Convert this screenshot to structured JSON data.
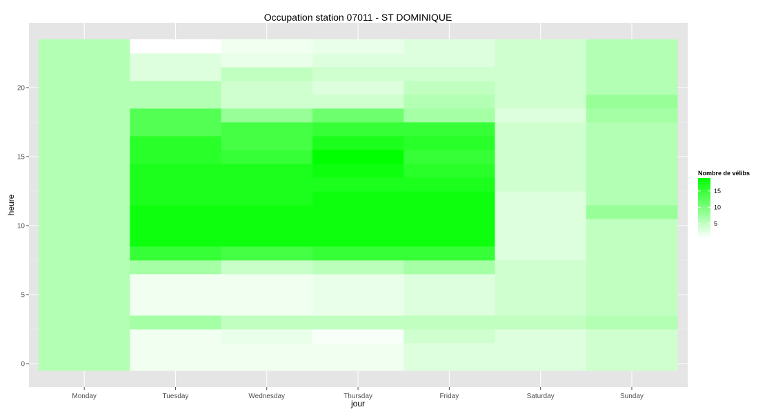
{
  "chart_data": {
    "type": "heatmap",
    "title": "Occupation station 07011 - ST DOMINIQUE",
    "xlabel": "jour",
    "ylabel": "heure",
    "x_categories": [
      "Monday",
      "Tuesday",
      "Wednesday",
      "Thursday",
      "Friday",
      "Saturday",
      "Sunday"
    ],
    "y_ticks": [
      0,
      5,
      10,
      15,
      20
    ],
    "y_range": [
      -0.5,
      23.5
    ],
    "hours": [
      0,
      1,
      2,
      3,
      4,
      5,
      6,
      7,
      8,
      9,
      10,
      11,
      12,
      13,
      14,
      15,
      16,
      17,
      18,
      19,
      20,
      21,
      22,
      23
    ],
    "legend": {
      "title": "Nombre de vélibs",
      "ticks": [
        5,
        10,
        15
      ],
      "min": 0.5,
      "max": 19,
      "low_color": "#ffffff",
      "high_color": "#00ff00"
    },
    "grid": true,
    "legend_position": "right",
    "values": [
      [
        6,
        6,
        6,
        6,
        6,
        6,
        6,
        6,
        6,
        6,
        6,
        6,
        6,
        6,
        6,
        6,
        6,
        6,
        6,
        6,
        6,
        6,
        6,
        6
      ],
      [
        1.5,
        1.5,
        1.5,
        7,
        1.5,
        1.5,
        1.5,
        7,
        15,
        18,
        18,
        18,
        17,
        17,
        17,
        16,
        16,
        13,
        13,
        6,
        6,
        3,
        3,
        0.5
      ],
      [
        1.5,
        1.5,
        2,
        5,
        1.5,
        1.5,
        1.5,
        4.5,
        14,
        18,
        18,
        18,
        17,
        17,
        17,
        15,
        14,
        14,
        8,
        4,
        4,
        5,
        2,
        1.5
      ],
      [
        1.5,
        1.5,
        1,
        5,
        2,
        2,
        2,
        5.5,
        15,
        18,
        18,
        18,
        18,
        17,
        18,
        19,
        17,
        15,
        11,
        4,
        3,
        4,
        3,
        2
      ],
      [
        3,
        3,
        4,
        5,
        3,
        3,
        3,
        7,
        15,
        18,
        18,
        18,
        18,
        17,
        16,
        15,
        16,
        15,
        7,
        6,
        5,
        4,
        3,
        3
      ],
      [
        3,
        3,
        3,
        5,
        4,
        4,
        4,
        4,
        3,
        3,
        3,
        3,
        3,
        4,
        4,
        4,
        4,
        4,
        3,
        4,
        4,
        4,
        4,
        4
      ],
      [
        4,
        4,
        4,
        6,
        5,
        5,
        5,
        5,
        5,
        5,
        5,
        8,
        6,
        6,
        6,
        6,
        6,
        6,
        7,
        8,
        6,
        6,
        6,
        6
      ]
    ]
  }
}
